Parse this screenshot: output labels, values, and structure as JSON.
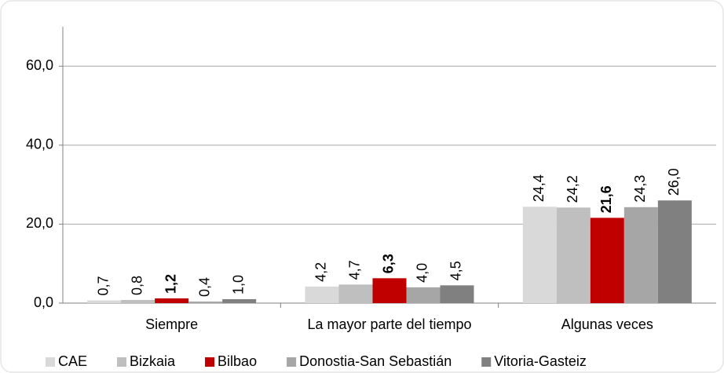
{
  "chart_data": {
    "type": "bar",
    "categories": [
      "Siempre",
      "La mayor parte del tiempo",
      "Algunas veces"
    ],
    "series": [
      {
        "name": "CAE",
        "color": "#d9d9d9",
        "values": [
          0.7,
          4.2,
          24.4
        ],
        "value_labels": [
          "0,7",
          "4,2",
          "24,4"
        ]
      },
      {
        "name": "Bizkaia",
        "color": "#bfbfbf",
        "values": [
          0.8,
          4.7,
          24.2
        ],
        "value_labels": [
          "0,8",
          "4,7",
          "24,2"
        ]
      },
      {
        "name": "Bilbao",
        "color": "#c00000",
        "bold": true,
        "values": [
          1.2,
          6.3,
          21.6
        ],
        "value_labels": [
          "1,2",
          "6,3",
          "21,6"
        ]
      },
      {
        "name": "Donostia-San Sebastián",
        "color": "#a6a6a6",
        "values": [
          0.4,
          4.0,
          24.3
        ],
        "value_labels": [
          "0,4",
          "4,0",
          "24,3"
        ]
      },
      {
        "name": "Vitoria-Gasteiz",
        "color": "#808080",
        "values": [
          1.0,
          4.5,
          26.0
        ],
        "value_labels": [
          "1,0",
          "4,5",
          "26,0"
        ]
      }
    ],
    "ylim": [
      0,
      70
    ],
    "yticks": [
      {
        "value": 0,
        "label": "0,0"
      },
      {
        "value": 20,
        "label": "20,0"
      },
      {
        "value": 40,
        "label": "40,0"
      },
      {
        "value": 60,
        "label": "60,0"
      }
    ],
    "grid": true,
    "legend": "bottom"
  }
}
